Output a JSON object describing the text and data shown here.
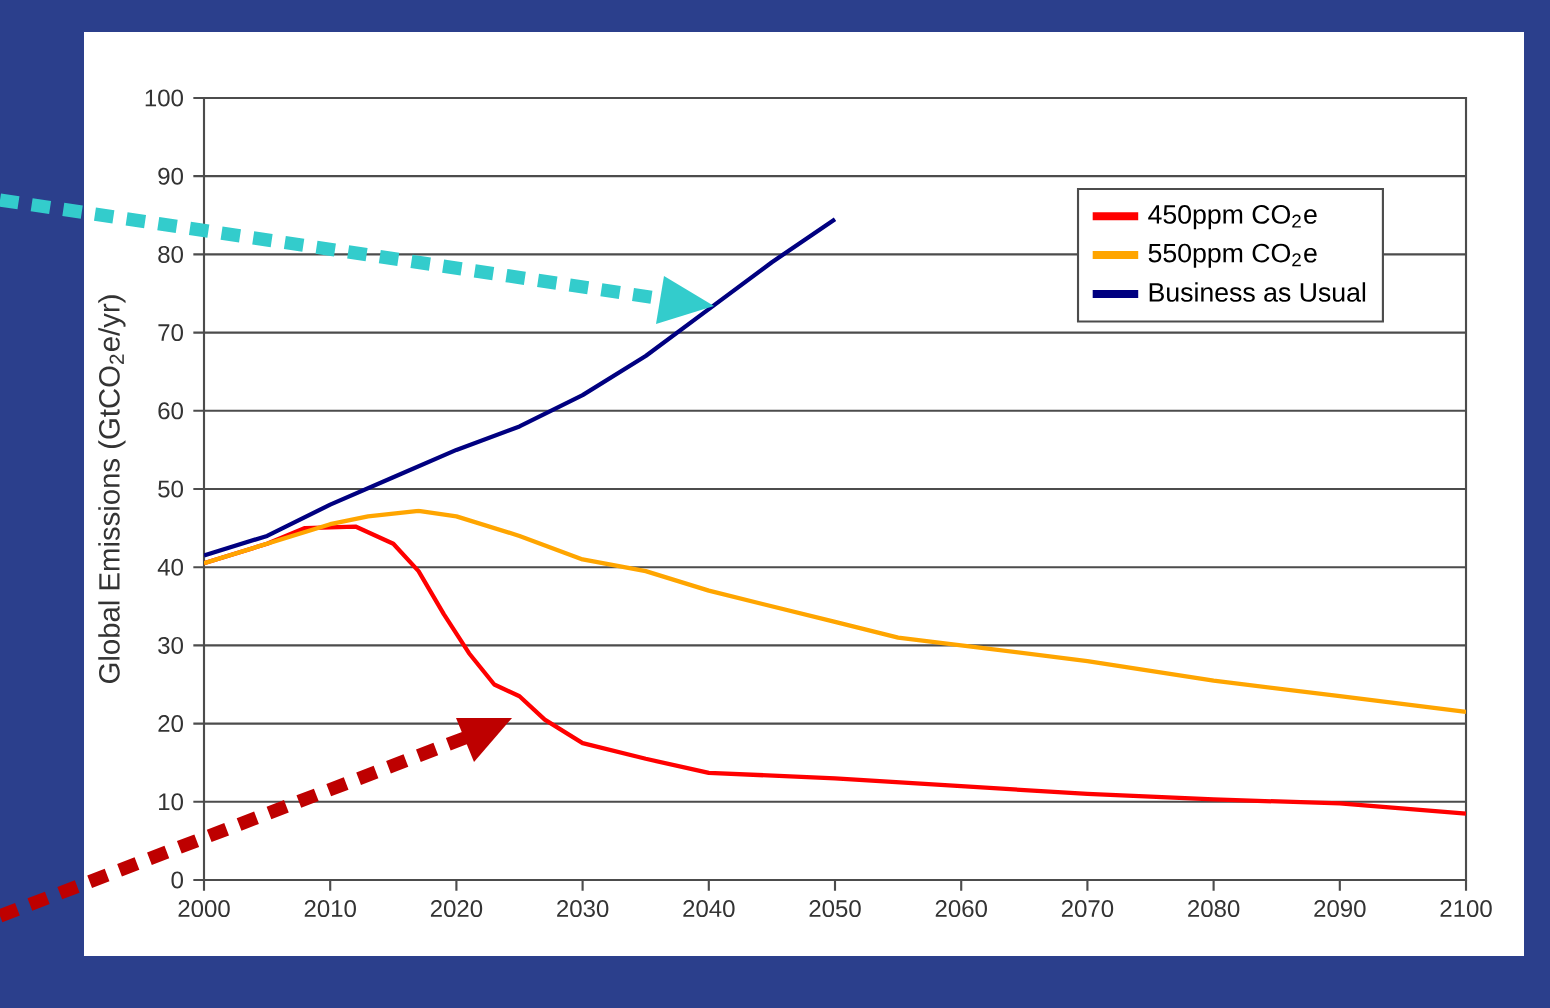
{
  "chart_data": {
    "type": "line",
    "ylabel": "Global Emissions (GtCO$_{2}$e/yr)",
    "xlim": [
      2000,
      2100
    ],
    "ylim": [
      0,
      100
    ],
    "xticks": [
      2000,
      2010,
      2020,
      2030,
      2040,
      2050,
      2060,
      2070,
      2080,
      2090,
      2100
    ],
    "yticks": [
      0,
      10,
      20,
      30,
      40,
      50,
      60,
      70,
      80,
      90,
      100
    ],
    "grid": "y",
    "legend": "top right",
    "series": [
      {
        "name": "450ppm CO$_{2}$e",
        "color": "#ff0000",
        "x": [
          2000,
          2005,
          2008,
          2012,
          2015,
          2017,
          2019,
          2021,
          2023,
          2025,
          2027,
          2030,
          2035,
          2040,
          2050,
          2060,
          2070,
          2080,
          2090,
          2100
        ],
        "values": [
          40.5,
          43,
          45,
          45.2,
          43,
          39.5,
          34,
          29,
          25,
          23.5,
          20.5,
          17.5,
          15.5,
          13.7,
          13,
          12,
          11,
          10.3,
          9.8,
          8.5
        ]
      },
      {
        "name": "550ppm CO$_{2}$e",
        "color": "#ffa500",
        "x": [
          2000,
          2005,
          2010,
          2013,
          2017,
          2020,
          2025,
          2030,
          2035,
          2040,
          2045,
          2050,
          2055,
          2060,
          2070,
          2080,
          2090,
          2100
        ],
        "values": [
          40.5,
          43,
          45.5,
          46.5,
          47.2,
          46.5,
          44,
          41,
          39.5,
          37,
          35,
          33,
          31,
          30,
          28,
          25.5,
          23.5,
          21.5
        ]
      },
      {
        "name": "Business as Usual",
        "color": "#000080",
        "x": [
          2000,
          2005,
          2010,
          2015,
          2020,
          2025,
          2030,
          2035,
          2040,
          2045,
          2050
        ],
        "values": [
          41.5,
          44,
          48,
          51.5,
          55,
          58,
          62,
          67,
          73,
          79,
          84.5
        ]
      }
    ]
  }
}
